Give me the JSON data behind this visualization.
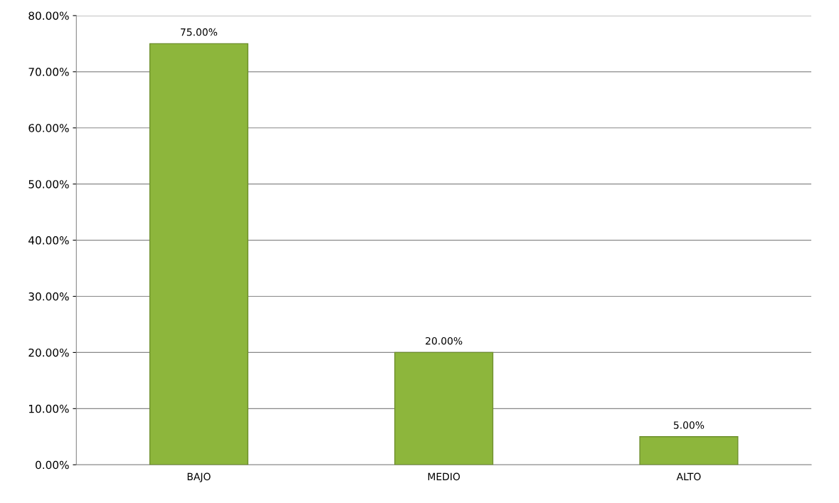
{
  "chart_data": {
    "type": "bar",
    "categories": [
      "BAJO",
      "MEDIO",
      "ALTO"
    ],
    "values": [
      75,
      20,
      5
    ],
    "value_labels": [
      "75.00%",
      "20.00%",
      "5.00%"
    ],
    "color": "#8db63c",
    "ylim": [
      0,
      80
    ],
    "yticks": [
      {
        "value": 0,
        "label": "0.00%"
      },
      {
        "value": 10,
        "label": "10.00%"
      },
      {
        "value": 20,
        "label": "20.00%"
      },
      {
        "value": 30,
        "label": "30.00%"
      },
      {
        "value": 40,
        "label": "40.00%"
      },
      {
        "value": 50,
        "label": "50.00%"
      },
      {
        "value": 60,
        "label": "60.00%"
      },
      {
        "value": 70,
        "label": "70.00%"
      },
      {
        "value": 80,
        "label": "80.00%"
      }
    ],
    "grid": "y"
  }
}
